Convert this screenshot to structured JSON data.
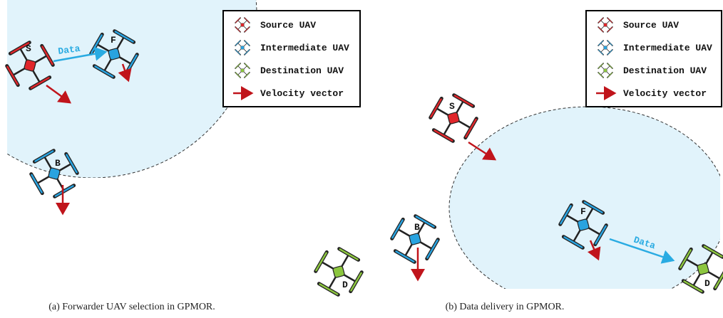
{
  "panels": [
    {
      "legend": [
        "Source UAV",
        "Intermediate UAV",
        "Destination UAV",
        "Velocity vector"
      ],
      "nodes": [
        "S",
        "F",
        "B"
      ],
      "edge_label": "Data",
      "caption": "(a) Forwarder UAV selection in GPMOR."
    },
    {
      "legend": [
        "Source UAV",
        "Intermediate UAV",
        "Destination UAV",
        "Velocity vector"
      ],
      "nodes": [
        "S",
        "B",
        "D",
        "F",
        "D"
      ],
      "edge_label": "Data",
      "caption": "(b) Data delivery in GPMOR."
    }
  ]
}
